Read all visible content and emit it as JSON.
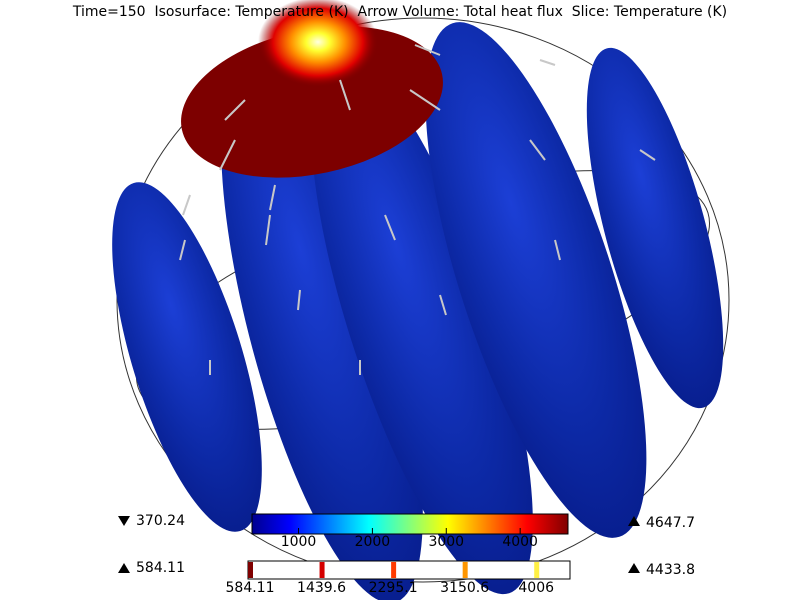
{
  "header": {
    "title": "Time=150  Isosurface: Temperature (K)  Arrow Volume: Total heat flux  Slice: Temperature (K)"
  },
  "legends": [
    {
      "min": 370.24,
      "max": 4647.7,
      "ticks": [
        1000,
        2000,
        3000,
        4000
      ]
    },
    {
      "min": 584.11,
      "max": 4433.8,
      "ticks": [
        584.11,
        1439.6,
        2295.1,
        3150.6,
        4006
      ]
    }
  ]
}
